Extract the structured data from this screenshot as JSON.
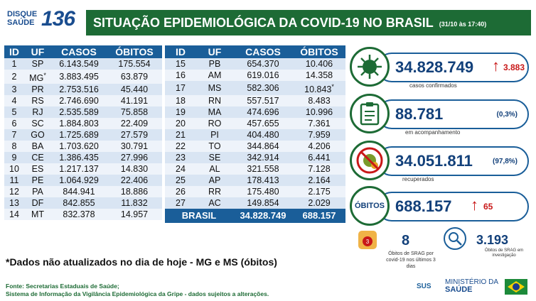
{
  "logo": {
    "line1": "DISQUE",
    "line2": "SAÚDE",
    "number": "136"
  },
  "header": {
    "title": "SITUAÇÃO EPIDEMIOLÓGICA DA COVID-19 NO BRASIL",
    "date": "(31/10 às 17:40)"
  },
  "table": {
    "headers": [
      "ID",
      "UF",
      "CASOS",
      "ÓBITOS"
    ],
    "left": [
      [
        "1",
        "SP",
        "6.143.549",
        "175.554"
      ],
      [
        "2",
        "MG",
        "3.883.495",
        "63.879"
      ],
      [
        "3",
        "PR",
        "2.753.516",
        "45.440"
      ],
      [
        "4",
        "RS",
        "2.746.690",
        "41.191"
      ],
      [
        "5",
        "RJ",
        "2.535.589",
        "75.858"
      ],
      [
        "6",
        "SC",
        "1.884.803",
        "22.409"
      ],
      [
        "7",
        "GO",
        "1.725.689",
        "27.579"
      ],
      [
        "8",
        "BA",
        "1.703.620",
        "30.791"
      ],
      [
        "9",
        "CE",
        "1.386.435",
        "27.996"
      ],
      [
        "10",
        "ES",
        "1.217.137",
        "14.830"
      ],
      [
        "11",
        "PE",
        "1.064.929",
        "22.406"
      ],
      [
        "12",
        "PA",
        "844.941",
        "18.886"
      ],
      [
        "13",
        "DF",
        "842.855",
        "11.832"
      ],
      [
        "14",
        "MT",
        "832.378",
        "14.957"
      ]
    ],
    "right": [
      [
        "15",
        "PB",
        "654.370",
        "10.406"
      ],
      [
        "16",
        "AM",
        "619.016",
        "14.358"
      ],
      [
        "17",
        "MS",
        "582.306",
        "10.843"
      ],
      [
        "18",
        "RN",
        "557.517",
        "8.483"
      ],
      [
        "19",
        "MA",
        "474.696",
        "10.996"
      ],
      [
        "20",
        "RO",
        "457.655",
        "7.361"
      ],
      [
        "21",
        "PI",
        "404.480",
        "7.959"
      ],
      [
        "22",
        "TO",
        "344.864",
        "4.206"
      ],
      [
        "23",
        "SE",
        "342.914",
        "6.441"
      ],
      [
        "24",
        "AL",
        "321.558",
        "7.128"
      ],
      [
        "25",
        "AP",
        "178.413",
        "2.164"
      ],
      [
        "26",
        "RR",
        "175.480",
        "2.175"
      ],
      [
        "27",
        "AC",
        "149.854",
        "2.029"
      ]
    ],
    "asterisk": "*",
    "total": {
      "label": "BRASIL",
      "cases": "34.828.749",
      "deaths": "688.157"
    }
  },
  "note": "*Dados não atualizados no dia de hoje - MG e MS (óbitos)",
  "source": {
    "line1": "Fonte: Secretarias Estaduais de Saúde;",
    "line2": "Sistema de Informação da Vigilância Epidemiológica da Gripe - dados sujeitos a alterações."
  },
  "cards": {
    "confirmed": {
      "value": "34.828.749",
      "label": "casos confirmados",
      "delta": "3.883",
      "icon": "virus-icon"
    },
    "monitoring": {
      "value": "88.781",
      "label": "em acompanhamento",
      "pct": "(0,3%)",
      "icon": "clipboard-icon"
    },
    "recovered": {
      "value": "34.051.811",
      "label": "recuperados",
      "pct": "(97,8%)",
      "icon": "crossed-virus-icon"
    },
    "deaths": {
      "badge": "ÓBITOS",
      "value": "688.157",
      "delta": "65"
    }
  },
  "srag": {
    "icon_text": "3",
    "value": "8",
    "label": "Óbitos de SRAG por covid-19 nos últimos 3 dias"
  },
  "investigation": {
    "value": "3.193",
    "label": "Óbitos de SRAG em investigação"
  },
  "footer": {
    "sus": "SUS",
    "ministry_line1": "MINISTÉRIO DA",
    "ministry_line2": "SAÚDE"
  },
  "colors": {
    "green": "#1d6b35",
    "blue": "#1a5e99",
    "red": "#c81818"
  }
}
